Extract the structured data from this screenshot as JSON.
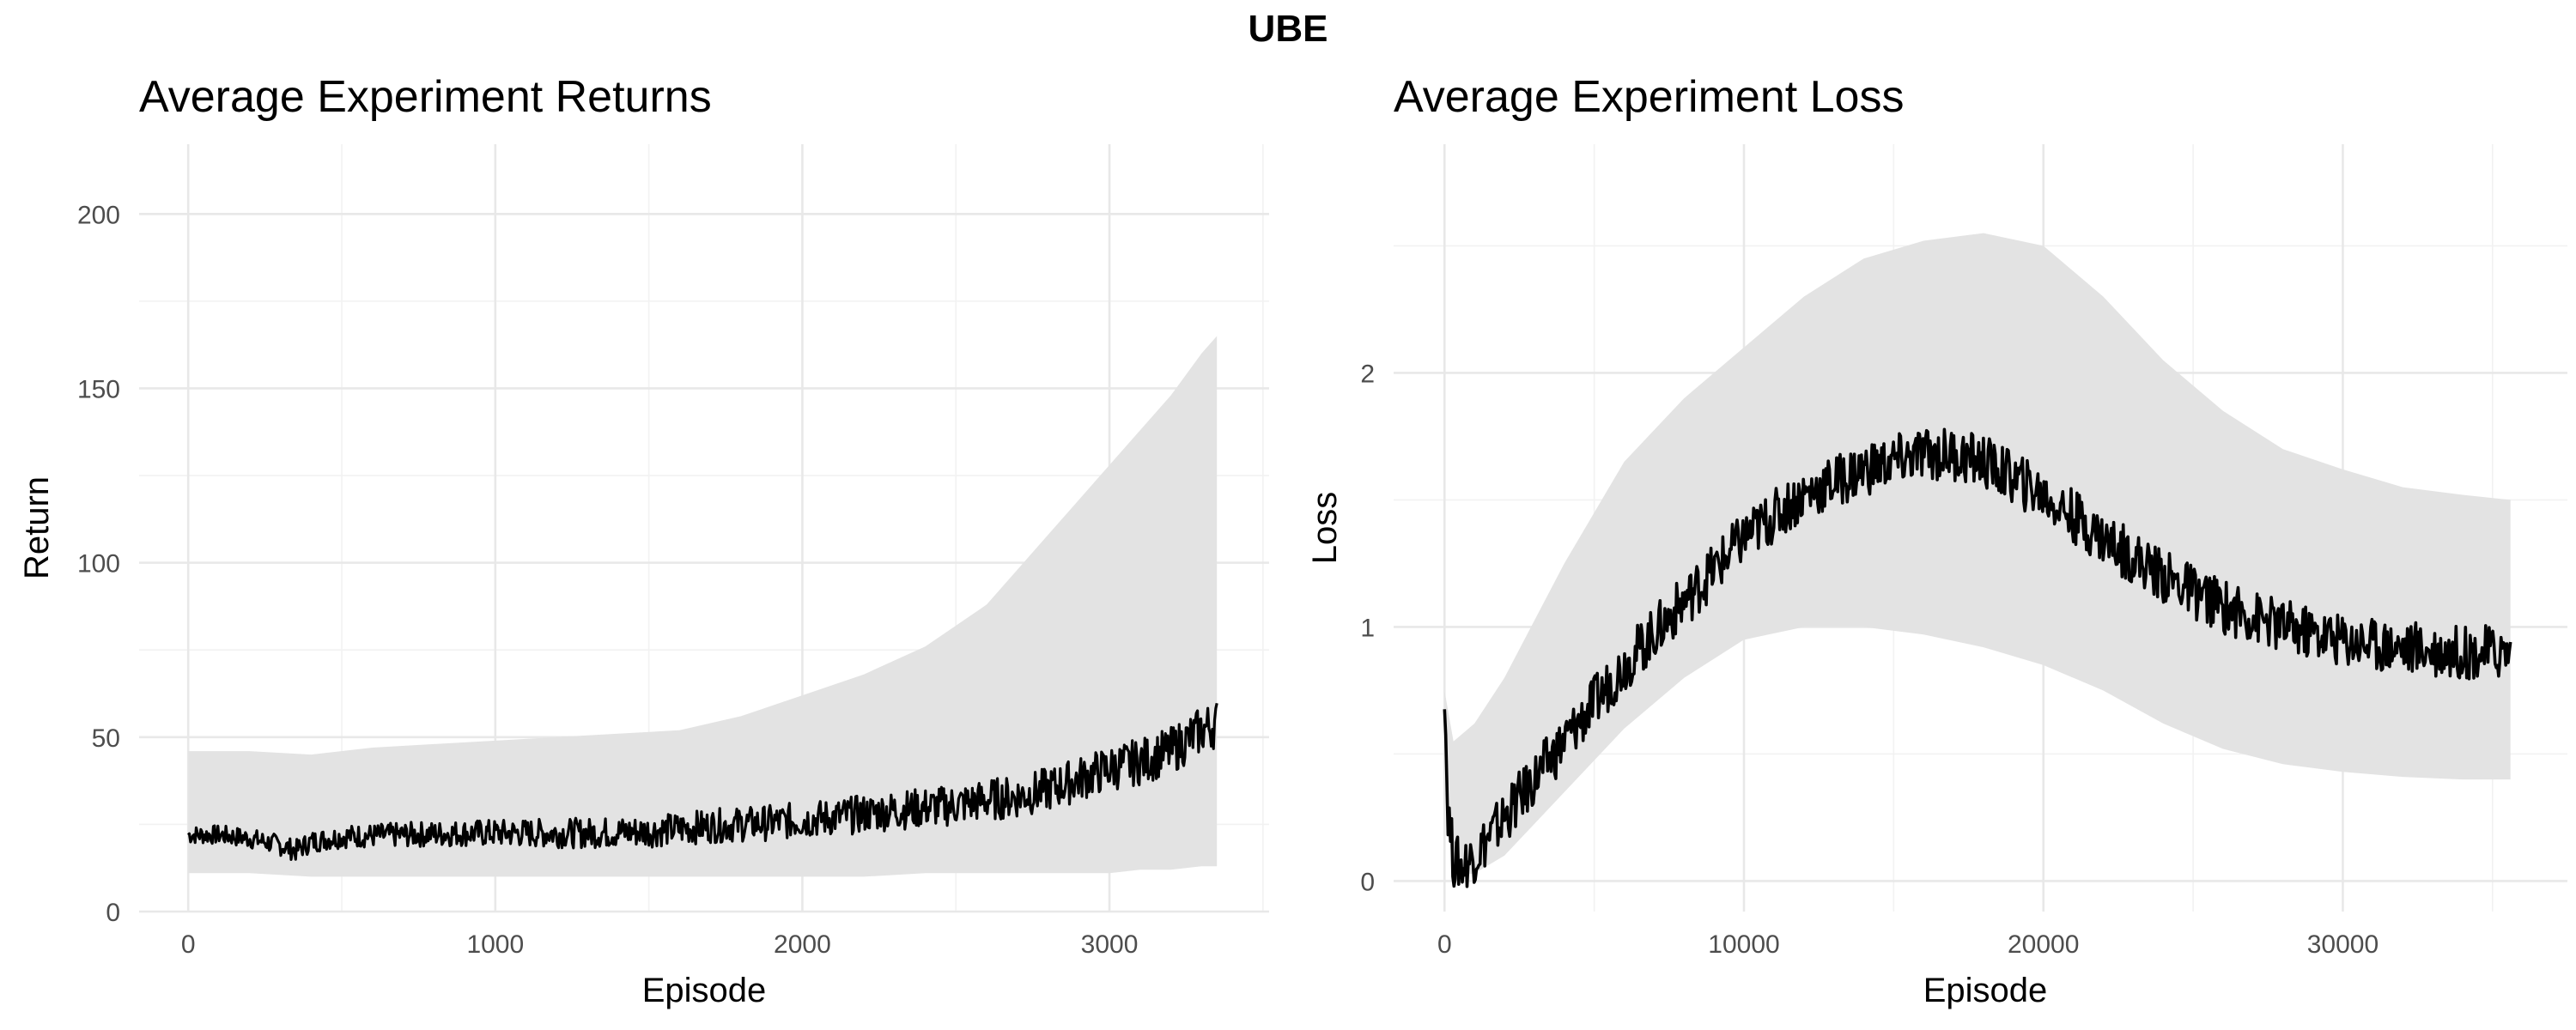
{
  "figure": {
    "title": "UBE"
  },
  "colors": {
    "ribbon": "#e3e3e3",
    "line": "#000000",
    "grid": "#e8e8e8"
  },
  "chart_data": [
    {
      "type": "line",
      "title": "Average Experiment Returns",
      "xlabel": "Episode",
      "ylabel": "Return",
      "xlim": [
        -160,
        3520
      ],
      "ylim": [
        0,
        220
      ],
      "xticks": [
        0,
        1000,
        2000,
        3000
      ],
      "yticks": [
        0,
        50,
        100,
        150,
        200
      ],
      "grid": true,
      "ribbon": {
        "x": [
          0,
          200,
          400,
          600,
          800,
          1000,
          1200,
          1400,
          1600,
          1800,
          2000,
          2200,
          2400,
          2600,
          2700,
          2800,
          2900,
          3000,
          3100,
          3200,
          3300,
          3350
        ],
        "lower": [
          11,
          11,
          10,
          10,
          10,
          10,
          10,
          10,
          10,
          10,
          10,
          10,
          11,
          11,
          11,
          11,
          11,
          11,
          12,
          12,
          13,
          13
        ],
        "upper": [
          46,
          46,
          45,
          47,
          48,
          49,
          50,
          51,
          52,
          56,
          62,
          68,
          76,
          88,
          98,
          108,
          118,
          128,
          138,
          148,
          160,
          165
        ]
      },
      "series": [
        {
          "x": [
            0,
            100,
            200,
            300,
            350,
            400,
            500,
            700,
            900,
            1100,
            1300,
            1500,
            1700,
            1900,
            2100,
            2300,
            2500,
            2600,
            2700,
            2800,
            2900,
            3000,
            3100,
            3200,
            3300,
            3350
          ],
          "values": [
            22,
            22,
            21,
            19,
            17.5,
            20,
            21.5,
            22,
            22.5,
            22.5,
            22.5,
            23,
            24.5,
            25.5,
            27,
            29,
            30.5,
            32,
            33,
            35,
            38,
            41,
            43,
            46,
            52,
            54
          ]
        }
      ]
    },
    {
      "type": "line",
      "title": "Average Experiment Loss",
      "xlabel": "Episode",
      "ylabel": "Loss",
      "xlim": [
        -1700,
        37500
      ],
      "ylim": [
        -0.12,
        2.9
      ],
      "xticks": [
        0,
        10000,
        20000,
        30000
      ],
      "yticks": [
        0,
        1,
        2
      ],
      "grid": true,
      "ribbon": {
        "x": [
          0,
          300,
          1000,
          2000,
          4000,
          6000,
          8000,
          10000,
          12000,
          14000,
          16000,
          18000,
          20000,
          22000,
          24000,
          26000,
          28000,
          30000,
          32000,
          34000,
          35600
        ],
        "lower": [
          0.35,
          0.02,
          0.03,
          0.1,
          0.35,
          0.6,
          0.8,
          0.95,
          1.0,
          1.0,
          0.97,
          0.92,
          0.85,
          0.75,
          0.62,
          0.52,
          0.46,
          0.43,
          0.41,
          0.4,
          0.4
        ],
        "upper": [
          0.75,
          0.55,
          0.62,
          0.8,
          1.25,
          1.65,
          1.9,
          2.1,
          2.3,
          2.45,
          2.52,
          2.55,
          2.5,
          2.3,
          2.05,
          1.85,
          1.7,
          1.62,
          1.55,
          1.52,
          1.5
        ]
      },
      "series": [
        {
          "x": [
            0,
            100,
            300,
            600,
            1000,
            2000,
            4000,
            6000,
            8000,
            10000,
            12000,
            14000,
            16000,
            17000,
            18000,
            20000,
            22000,
            24000,
            26000,
            28000,
            30000,
            32000,
            34000,
            35600
          ],
          "values": [
            0.78,
            0.3,
            0.08,
            0.06,
            0.1,
            0.25,
            0.55,
            0.85,
            1.1,
            1.35,
            1.52,
            1.62,
            1.68,
            1.68,
            1.65,
            1.52,
            1.35,
            1.2,
            1.08,
            1.0,
            0.95,
            0.92,
            0.9,
            0.9
          ]
        }
      ]
    }
  ]
}
